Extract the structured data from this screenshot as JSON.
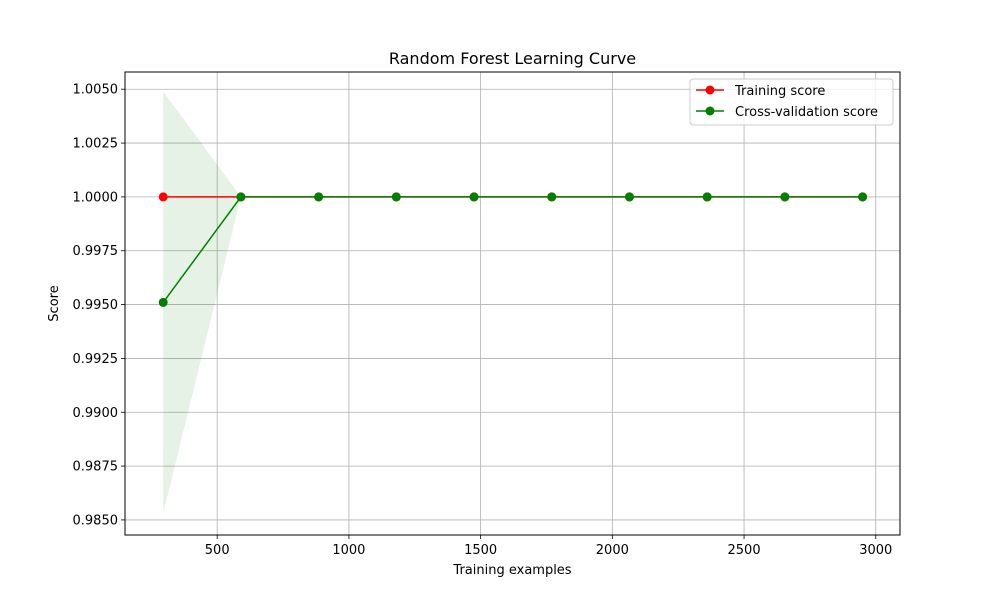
{
  "chart_data": {
    "type": "line",
    "title": "Random Forest Learning Curve",
    "xlabel": "Training examples",
    "ylabel": "Score",
    "xlim": [
      150,
      3092
    ],
    "ylim": [
      0.9843,
      1.0058
    ],
    "xticks": [
      500,
      1000,
      1500,
      2000,
      2500,
      3000
    ],
    "xtick_labels": [
      "500",
      "1000",
      "1500",
      "2000",
      "2500",
      "3000"
    ],
    "yticks": [
      0.985,
      0.9875,
      0.99,
      0.9925,
      0.995,
      0.9975,
      1.0,
      1.0025,
      1.005
    ],
    "ytick_labels": [
      "0.9850",
      "0.9875",
      "0.9900",
      "0.9925",
      "0.9950",
      "0.9975",
      "1.0000",
      "1.0025",
      "1.0050"
    ],
    "grid": true,
    "legend_position": "top-right",
    "x": [
      295,
      590,
      885,
      1180,
      1475,
      1770,
      2065,
      2360,
      2655,
      2950
    ],
    "series": [
      {
        "name": "Training score",
        "color": "#ff0000",
        "values": [
          1.0,
          1.0,
          1.0,
          1.0,
          1.0,
          1.0,
          1.0,
          1.0,
          1.0,
          1.0
        ],
        "band_lower": [
          1.0,
          1.0,
          1.0,
          1.0,
          1.0,
          1.0,
          1.0,
          1.0,
          1.0,
          1.0
        ],
        "band_upper": [
          1.0,
          1.0,
          1.0,
          1.0,
          1.0,
          1.0,
          1.0,
          1.0,
          1.0,
          1.0
        ],
        "band_color": "#ff0000"
      },
      {
        "name": "Cross-validation score",
        "color": "#008000",
        "values": [
          0.9951,
          1.0,
          1.0,
          1.0,
          1.0,
          1.0,
          1.0,
          1.0,
          1.0,
          1.0
        ],
        "band_lower": [
          0.9853,
          1.0,
          1.0,
          1.0,
          1.0,
          1.0,
          1.0,
          1.0,
          1.0,
          1.0
        ],
        "band_upper": [
          1.0049,
          1.0,
          1.0,
          1.0,
          1.0,
          1.0,
          1.0,
          1.0,
          1.0,
          1.0
        ],
        "band_color": "#008000"
      }
    ]
  }
}
